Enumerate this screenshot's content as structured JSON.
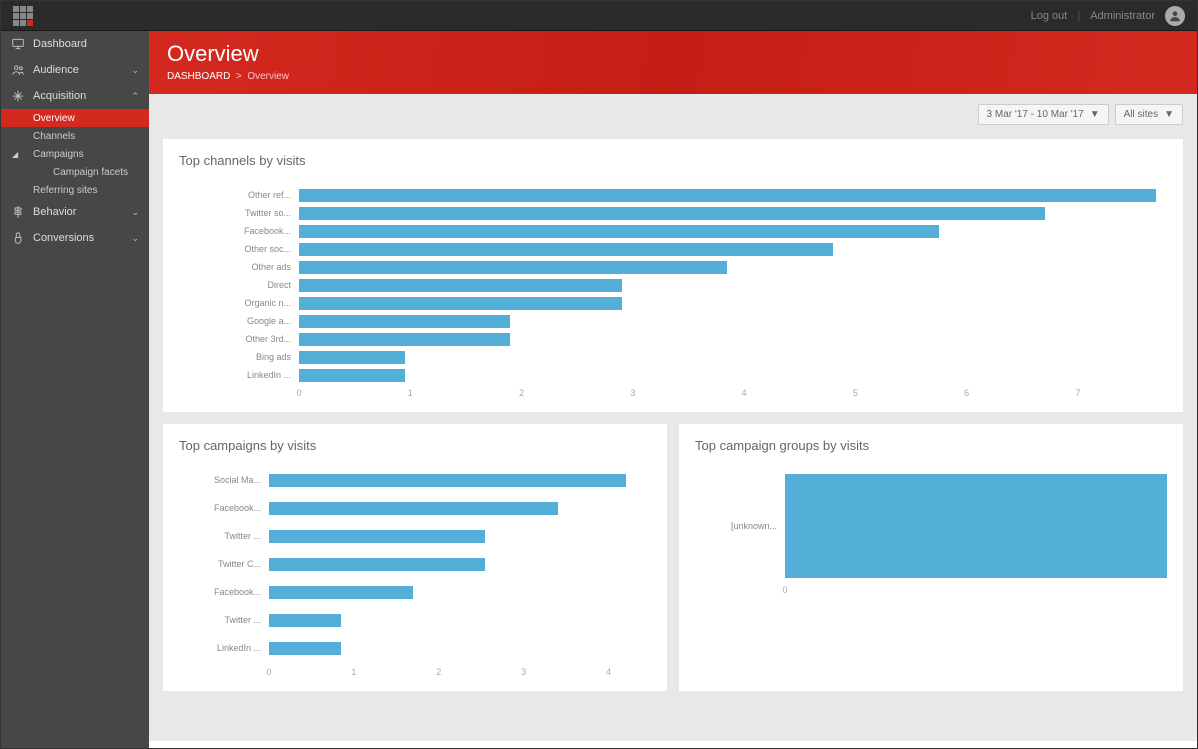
{
  "topbar": {
    "logout_label": "Log out",
    "user_label": "Administrator"
  },
  "sidebar": {
    "items": [
      {
        "icon": "monitor",
        "label": "Dashboard"
      },
      {
        "icon": "users",
        "label": "Audience",
        "chev": "down"
      },
      {
        "icon": "arrows",
        "label": "Acquisition",
        "chev": "up",
        "expanded": true,
        "children": [
          {
            "label": "Overview",
            "active": true
          },
          {
            "label": "Channels"
          },
          {
            "label": "Campaigns",
            "caret": true,
            "children": [
              {
                "label": "Campaign facets"
              }
            ]
          },
          {
            "label": "Referring sites"
          }
        ]
      },
      {
        "icon": "signpost",
        "label": "Behavior",
        "chev": "down"
      },
      {
        "icon": "tap",
        "label": "Conversions",
        "chev": "down"
      }
    ]
  },
  "header": {
    "title": "Overview",
    "breadcrumb_root": "DASHBOARD",
    "breadcrumb_sep": ">",
    "breadcrumb_current": "Overview"
  },
  "filters": {
    "date_range": "3 Mar '17 - 10 Mar '17",
    "sites": "All sites"
  },
  "colors": {
    "bar": "#53aed8",
    "panel_bg": "#ffffff",
    "page_bg": "#e8e8e8",
    "accent": "#d4291f"
  },
  "top_channels": {
    "title": "Top channels by visits",
    "type": "bar-horizontal",
    "xlim": [
      0,
      7.8
    ],
    "xticks": [
      0,
      1,
      2,
      3,
      4,
      5,
      6,
      7
    ],
    "bar_color": "#53aed8",
    "label_fontsize": 9,
    "bars": [
      {
        "label": "Other ref...",
        "value": 7.7
      },
      {
        "label": "Twitter so...",
        "value": 6.7
      },
      {
        "label": "Facebook...",
        "value": 5.75
      },
      {
        "label": "Other soc...",
        "value": 4.8
      },
      {
        "label": "Other ads",
        "value": 3.85
      },
      {
        "label": "Direct",
        "value": 2.9
      },
      {
        "label": "Organic n...",
        "value": 2.9
      },
      {
        "label": "Google a...",
        "value": 1.9
      },
      {
        "label": "Other 3rd...",
        "value": 1.9
      },
      {
        "label": "Bing ads",
        "value": 0.95
      },
      {
        "label": "LinkedIn ...",
        "value": 0.95
      }
    ]
  },
  "top_campaigns": {
    "title": "Top campaigns by visits",
    "type": "bar-horizontal",
    "xlim": [
      0,
      4.5
    ],
    "xticks": [
      0,
      1,
      2,
      3,
      4
    ],
    "bar_color": "#53aed8",
    "bars": [
      {
        "label": "Social Ma...",
        "value": 4.2
      },
      {
        "label": "Facebook...",
        "value": 3.4
      },
      {
        "label": "Twitter ...",
        "value": 2.55
      },
      {
        "label": "Twitter C...",
        "value": 2.55
      },
      {
        "label": "Facebook...",
        "value": 1.7
      },
      {
        "label": "Twitter ...",
        "value": 0.85
      },
      {
        "label": "LinkedIn ...",
        "value": 0.85
      }
    ]
  },
  "top_campaign_groups": {
    "title": "Top campaign groups by visits",
    "type": "bar-horizontal",
    "xlim": [
      0,
      1
    ],
    "xticks": [
      0
    ],
    "bar_color": "#53aed8",
    "bars": [
      {
        "label": "[unknown...",
        "value": 1.0
      }
    ]
  }
}
